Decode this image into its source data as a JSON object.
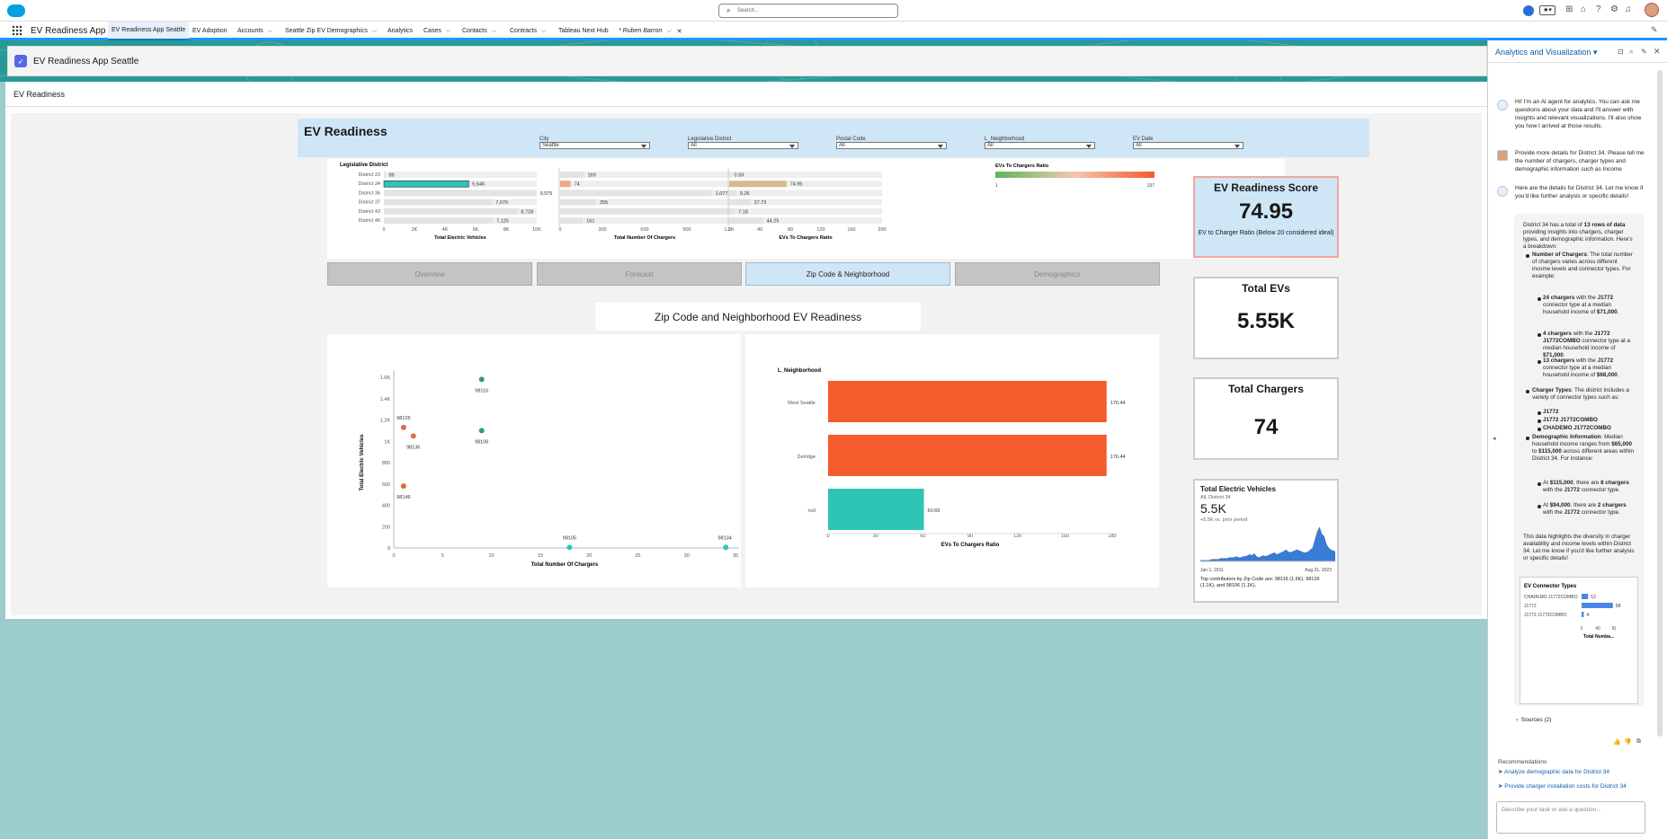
{
  "topbar": {
    "app_name": "EV Readiness App",
    "search_placeholder": "Search..."
  },
  "nav": {
    "tabs": [
      "EV Readiness App Seattle",
      "EV Adoption",
      "Accounts",
      "Seattle Zip EV Demographics",
      "Analytics",
      "Cases",
      "Contacts",
      "Contracts",
      "Tableau Next Hub",
      "* Ruben Barron"
    ]
  },
  "app": {
    "title": "EV Readiness App Seattle",
    "page_title": "EV Readiness"
  },
  "dashboard": {
    "title": "EV Readiness",
    "filters": [
      {
        "label": "City",
        "value": "Seattle"
      },
      {
        "label": "Legislative District",
        "value": "All"
      },
      {
        "label": "Postal Code",
        "value": "All"
      },
      {
        "label": "L_Neighborhood",
        "value": "All"
      },
      {
        "label": "EV Date",
        "value": "All"
      }
    ],
    "tabs": [
      "Overview",
      "Forecast",
      "Zip Code & Neighborhood",
      "Demographics"
    ],
    "section_title": "Zip Code and Neighborhood EV Readiness"
  },
  "chart_data": [
    {
      "type": "bar",
      "title": "",
      "ylabel": "Legislative District",
      "categories": [
        "District 23",
        "District 34",
        "District 36",
        "District 37",
        "District 43",
        "District 46"
      ],
      "panels": [
        {
          "xlabel": "Total Electric Vehicles",
          "values": [
            89,
            5546,
            9975,
            7070,
            8728,
            7125
          ],
          "ticks": [
            "0",
            "2K",
            "4K",
            "6K",
            "8K",
            "10K"
          ],
          "xlim": [
            0,
            10000
          ]
        },
        {
          "xlabel": "Total Number Of Chargers",
          "values": [
            169,
            74,
            1077,
            255,
            1215,
            161
          ],
          "ticks": [
            "0",
            "300",
            "600",
            "900",
            "1.2K"
          ],
          "xlim": [
            0,
            1200
          ]
        },
        {
          "xlabel": "EVs To Chargers Ratio",
          "values": [
            0.59,
            74.95,
            9.26,
            27.73,
            7.18,
            44.25
          ],
          "ticks": [
            "0",
            "40",
            "80",
            "120",
            "160",
            "200"
          ],
          "xlim": [
            0,
            200
          ]
        }
      ],
      "value_labels": [
        [
          "89",
          "5,546",
          "9,975",
          "7,070",
          "8,728",
          "7,125"
        ],
        [
          "169",
          "74",
          "1,077",
          "255",
          "1,215",
          "161"
        ],
        [
          "0.59",
          "74.95",
          "9.26",
          "27.73",
          "7.18",
          "44.25"
        ]
      ],
      "highlight": "District 34",
      "legend": {
        "title": "EVs To Chargers Ratio",
        "min": "1",
        "max": "197"
      }
    },
    {
      "type": "scatter",
      "title": "",
      "xlabel": "Total Number Of Chargers",
      "ylabel": "Total Electric Vehicles",
      "xlim": [
        0,
        35
      ],
      "ylim": [
        0,
        1600
      ],
      "xticks": [
        "0",
        "5",
        "10",
        "15",
        "20",
        "25",
        "30",
        "35"
      ],
      "yticks": [
        "0",
        "200",
        "400",
        "600",
        "800",
        "1K",
        "1.2K",
        "1.4K",
        "1.6K"
      ],
      "points": [
        {
          "label": "98116",
          "x": 9,
          "y": 1580,
          "color": "#2e9e7a"
        },
        {
          "label": "98126",
          "x": 1,
          "y": 1130,
          "color": "#e06a3b"
        },
        {
          "label": "98136",
          "x": 2,
          "y": 1050,
          "color": "#e06a3b"
        },
        {
          "label": "98106",
          "x": 9,
          "y": 1100,
          "color": "#2e9e7a"
        },
        {
          "label": "98146",
          "x": 1,
          "y": 580,
          "color": "#e06a3b"
        },
        {
          "label": "98105",
          "x": 18,
          "y": 5,
          "color": "#2ec4b6"
        },
        {
          "label": "98134",
          "x": 34,
          "y": 5,
          "color": "#2ec4b6"
        }
      ]
    },
    {
      "type": "bar",
      "title": "",
      "ylabel": "L_Neighborhood",
      "xlabel": "EVs To Chargers Ratio",
      "xlim": [
        0,
        180
      ],
      "xticks": [
        "0",
        "30",
        "60",
        "90",
        "120",
        "150",
        "180"
      ],
      "categories": [
        "West Seattle",
        "Delridge",
        "null"
      ],
      "values": [
        176.44,
        176.44,
        60.69
      ],
      "value_labels": [
        "176.44",
        "176.44",
        "60.69"
      ],
      "colors": [
        "#f45b2d",
        "#f45b2d",
        "#2ec4b6"
      ]
    },
    {
      "type": "bar",
      "title": "EV Connector Types",
      "xlabel": "Total Numba...",
      "categories": [
        "CHADEMO J1772COMBO",
        "J1772",
        "J1772 J1772COMBO"
      ],
      "values": [
        12,
        58,
        4
      ],
      "xticks": [
        "0",
        "40",
        "8("
      ]
    }
  ],
  "kpis": {
    "score_title": "EV Readiness Score",
    "score_value": "74.95",
    "score_note": "EV to Charger Ratio (Below 20 considered ideal)",
    "evs_title": "Total EVs",
    "evs_value": "5.55K",
    "chargers_title": "Total Chargers",
    "chargers_value": "74",
    "trend_title": "Total Electric Vehicles",
    "trend_subtitle": "All, District 34",
    "trend_value": "5.5K",
    "trend_delta": "+5.5K vs. prior period",
    "trend_start": "Jan 1, 2011",
    "trend_end": "Aug 31, 2023",
    "trend_contrib": "Top contributors by Zip Code are: 98116 (1.6K), 98126 (1.1K), and 98106 (1.1K).",
    "trend_series": [
      1,
      1,
      1,
      1,
      1,
      2,
      2,
      2,
      2,
      3,
      3,
      3,
      3,
      4,
      4,
      4,
      5,
      4,
      4,
      5,
      5,
      6,
      7,
      6,
      8,
      5,
      4,
      5,
      6,
      5,
      6,
      7,
      8,
      9,
      7,
      8,
      9,
      10,
      12,
      10,
      9,
      10,
      11,
      12,
      11,
      10,
      9,
      9,
      10,
      12,
      14,
      22,
      30,
      35,
      28,
      26,
      18,
      14,
      12,
      11,
      10
    ]
  },
  "panel": {
    "title": "Analytics and Visualization",
    "msg1": "Hi! I'm an AI agent for analytics. You can ask me questions about your data and I'll answer with insights and relevant visualizations. I'll also show you how I arrived at those results.",
    "msg2": "Provide more details for District 34. Please tell me the number of chargers, charger types and demographic information such as Income",
    "msg3": "Here are the details for District 34. Let me know if you'd like further analysis or specific details!",
    "sources": "Sources (2)",
    "recs_title": "Recommendations",
    "rec1": "Analyze demographic data for District 34",
    "rec2": "Provide charger installation costs for District 34",
    "input_placeholder": "Describe your task or ask a question..."
  },
  "details": {
    "intro_a": "District 34 has a total of ",
    "intro_b": "13 rows of data",
    "intro_c": " providing insights into chargers, charger types, and demographic information. Here's a breakdown:",
    "chargers_head": "Number of Chargers",
    "chargers_text": ": The total number of chargers varies across different income levels and connector types. For example:",
    "ex1_a": "24 chargers",
    "ex1_b": " with the ",
    "ex1_c": "J1772",
    "ex1_d": " connector type at a median household income of ",
    "ex1_e": "$71,000",
    "ex2_a": "4 chargers",
    "ex2_c": "J1772 J1772COMBO",
    "ex2_e": "$71,000",
    "ex3_a": "13 chargers",
    "ex3_c": "J1772",
    "ex3_e": "$68,000",
    "types_head": "Charger Types",
    "types_text": ": The district includes a variety of connector types such as:",
    "type1": "J1772",
    "type2": "J1772 J1772COMBO",
    "type3": "CHADEMO J1772COMBO",
    "demo_head": "Demographic Information",
    "demo_text_a": ": Median household income ranges from ",
    "demo_low": "$65,000",
    "demo_mid": " to ",
    "demo_high": "$115,000",
    "demo_text_b": " across different areas within District 34. For instance:",
    "inc1_a": "At ",
    "inc1_b": "$115,000",
    "inc1_c": ", there are ",
    "inc1_d": "8 chargers",
    "inc1_e": " with the ",
    "inc1_f": "J1772",
    "inc1_g": " connector type.",
    "inc2_b": "$94,000",
    "inc2_d": "2 chargers",
    "inc2_f": "J1772",
    "closing": "This data highlights the diversity in charger availability and income levels within District 34. Let me know if you'd like further analysis or specific details!"
  }
}
